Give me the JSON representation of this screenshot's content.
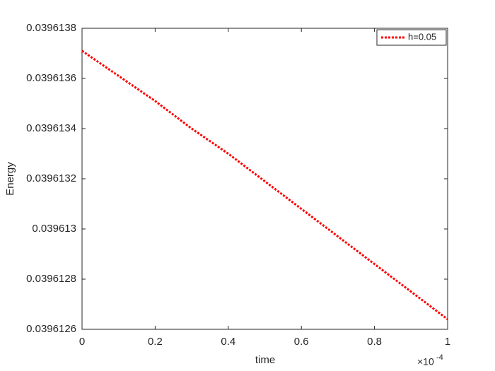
{
  "chart_data": {
    "type": "line",
    "x_label": "time",
    "y_label": "Energy",
    "x_multiplier": "×10",
    "x_exponent": "-4",
    "x": [
      0,
      0.1,
      0.2,
      0.3,
      0.4,
      0.5,
      0.6,
      0.7,
      0.8,
      0.9,
      1
    ],
    "series": [
      {
        "name": "h=0.05",
        "color": "#ff0000",
        "values": [
          0.03961371,
          0.03961361,
          0.03961351,
          0.0396134,
          0.0396133,
          0.03961319,
          0.03961308,
          0.03961297,
          0.03961286,
          0.03961275,
          0.03961264
        ]
      }
    ],
    "xlim": [
      0,
      1
    ],
    "xticks": [
      0,
      0.2,
      0.4,
      0.6,
      0.8,
      1
    ],
    "ylim": [
      0.0396126,
      0.0396138
    ],
    "yticks": [
      0.0396126,
      0.0396128,
      0.039613,
      0.0396132,
      0.0396134,
      0.0396136,
      0.0396138
    ],
    "legend": "top-right",
    "grid": false
  }
}
